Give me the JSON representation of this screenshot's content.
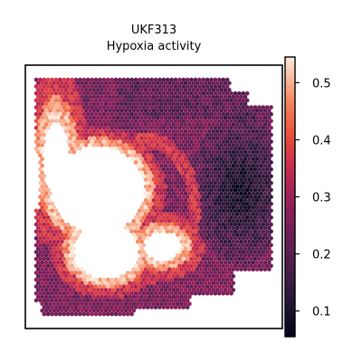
{
  "chart_data": {
    "type": "heatmap",
    "title": "UKF313",
    "subtitle": "Hypoxia activity",
    "xlabel": "",
    "ylabel": "",
    "colormap": "rocket",
    "colorbar": {
      "range": [
        0.055,
        0.545
      ],
      "ticks": [
        0.1,
        0.2,
        0.3,
        0.4,
        0.5
      ],
      "tick_labels": [
        "0.1",
        "0.2",
        "0.3",
        "0.4",
        "0.5"
      ]
    },
    "grid": false,
    "axes_ticks": false,
    "spatial_pattern": {
      "description_values": "spot-level hypoxia activity over tissue section",
      "high_region_value": 0.52,
      "rim_value": 0.38,
      "background_value": 0.25,
      "low_region_value": 0.08
    }
  }
}
